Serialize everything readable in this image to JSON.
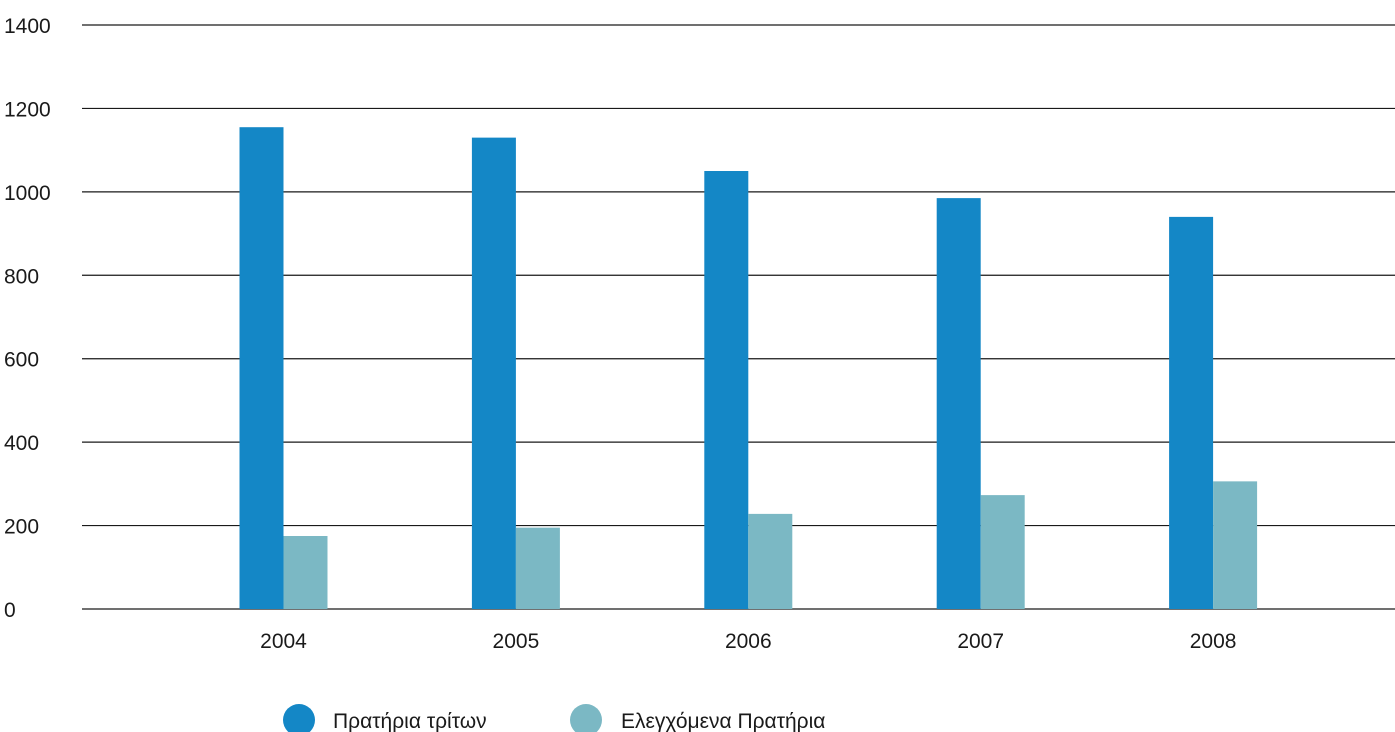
{
  "chart_data": {
    "type": "bar",
    "categories": [
      "2004",
      "2005",
      "2006",
      "2007",
      "2008"
    ],
    "series": [
      {
        "name": "Πρατήρια τρίτων",
        "values": [
          1155,
          1130,
          1050,
          985,
          940
        ],
        "color": "#1487c6"
      },
      {
        "name": "Ελεγχόμενα Πρατήρια",
        "values": [
          175,
          195,
          228,
          273,
          306
        ],
        "color": "#7bb8c4"
      }
    ],
    "title": "",
    "xlabel": "",
    "ylabel": "",
    "ylim": [
      0,
      1400
    ],
    "yticks": [
      "0",
      "200",
      "400",
      "600",
      "800",
      "1000",
      "1200",
      "1400"
    ],
    "grid": true,
    "legend_position": "bottom-center"
  }
}
